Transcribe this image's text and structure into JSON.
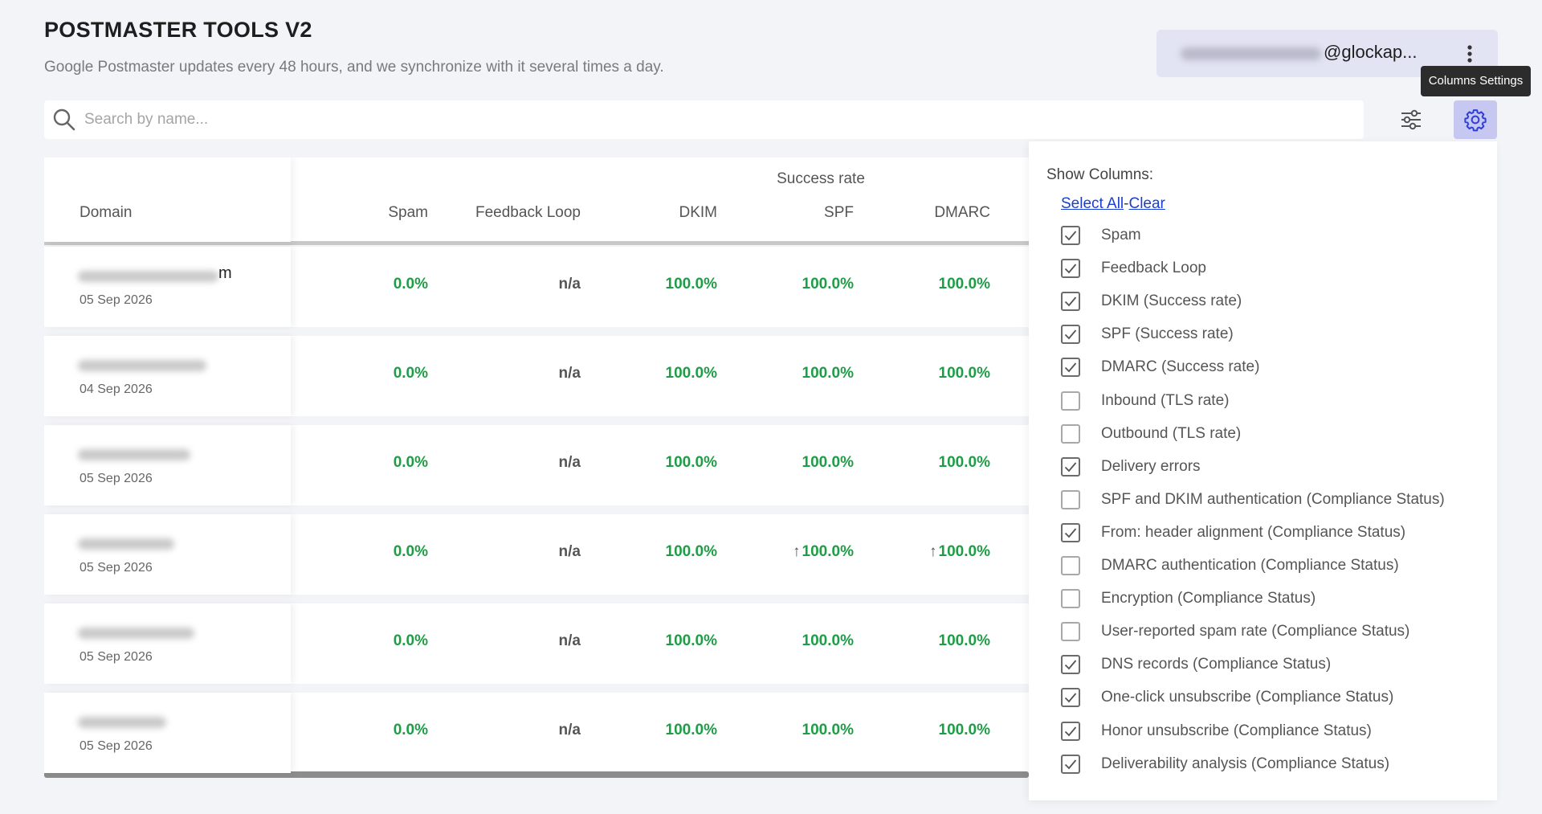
{
  "header": {
    "title": "POSTMASTER TOOLS V2",
    "subtitle": "Google Postmaster updates every 48 hours, and we synchronize with it several times a day."
  },
  "account": {
    "email_visible": "@glockap..."
  },
  "tooltip": "Columns Settings",
  "search": {
    "placeholder": "Search by name..."
  },
  "table": {
    "domain_header": "Domain",
    "group_header": "Success rate",
    "columns": [
      "Spam",
      "Feedback Loop",
      "DKIM",
      "SPF",
      "DMARC"
    ],
    "rows": [
      {
        "domain_suffix": "m",
        "date": "05 Sep 2026",
        "spam": "0.0%",
        "fbl": "n/a",
        "dkim": "100.0%",
        "spf": "100.0%",
        "dmarc": "100.0%",
        "spf_trend": "",
        "dmarc_trend": ""
      },
      {
        "domain_suffix": "",
        "date": "04 Sep 2026",
        "spam": "0.0%",
        "fbl": "n/a",
        "dkim": "100.0%",
        "spf": "100.0%",
        "dmarc": "100.0%",
        "spf_trend": "",
        "dmarc_trend": ""
      },
      {
        "domain_suffix": "",
        "date": "05 Sep 2026",
        "spam": "0.0%",
        "fbl": "n/a",
        "dkim": "100.0%",
        "spf": "100.0%",
        "dmarc": "100.0%",
        "spf_trend": "",
        "dmarc_trend": ""
      },
      {
        "domain_suffix": "",
        "date": "05 Sep 2026",
        "spam": "0.0%",
        "fbl": "n/a",
        "dkim": "100.0%",
        "spf": "100.0%",
        "dmarc": "100.0%",
        "spf_trend": "↑",
        "dmarc_trend": "↑"
      },
      {
        "domain_suffix": "",
        "date": "05 Sep 2026",
        "spam": "0.0%",
        "fbl": "n/a",
        "dkim": "100.0%",
        "spf": "100.0%",
        "dmarc": "100.0%",
        "spf_trend": "",
        "dmarc_trend": ""
      },
      {
        "domain_suffix": "",
        "date": "05 Sep 2026",
        "spam": "0.0%",
        "fbl": "n/a",
        "dkim": "100.0%",
        "spf": "100.0%",
        "dmarc": "100.0%",
        "spf_trend": "",
        "dmarc_trend": ""
      }
    ]
  },
  "column_settings": {
    "title": "Show Columns:",
    "select_all": "Select All",
    "separator": "-",
    "clear": "Clear",
    "options": [
      {
        "label": "Spam",
        "checked": true
      },
      {
        "label": "Feedback Loop",
        "checked": true
      },
      {
        "label": "DKIM (Success rate)",
        "checked": true
      },
      {
        "label": "SPF (Success rate)",
        "checked": true
      },
      {
        "label": "DMARC (Success rate)",
        "checked": true
      },
      {
        "label": "Inbound (TLS rate)",
        "checked": false
      },
      {
        "label": "Outbound (TLS rate)",
        "checked": false
      },
      {
        "label": "Delivery errors",
        "checked": true
      },
      {
        "label": "SPF and DKIM authentication (Compliance Status)",
        "checked": false
      },
      {
        "label": "From: header alignment (Compliance Status)",
        "checked": true
      },
      {
        "label": "DMARC authentication (Compliance Status)",
        "checked": false
      },
      {
        "label": "Encryption (Compliance Status)",
        "checked": false
      },
      {
        "label": "User-reported spam rate (Compliance Status)",
        "checked": false
      },
      {
        "label": "DNS records (Compliance Status)",
        "checked": true
      },
      {
        "label": "One-click unsubscribe (Compliance Status)",
        "checked": true
      },
      {
        "label": "Honor unsubscribe (Compliance Status)",
        "checked": true
      },
      {
        "label": "Deliverability analysis (Compliance Status)",
        "checked": true
      }
    ]
  },
  "colors": {
    "success": "#1f9d46",
    "link": "#1a3fd0",
    "accent": "#c6c8f1"
  },
  "icons": {
    "search": "search-icon",
    "filter": "sliders-icon",
    "settings": "gear-icon",
    "menu": "kebab-menu-icon",
    "checkbox_checked": "checkmark-icon"
  }
}
